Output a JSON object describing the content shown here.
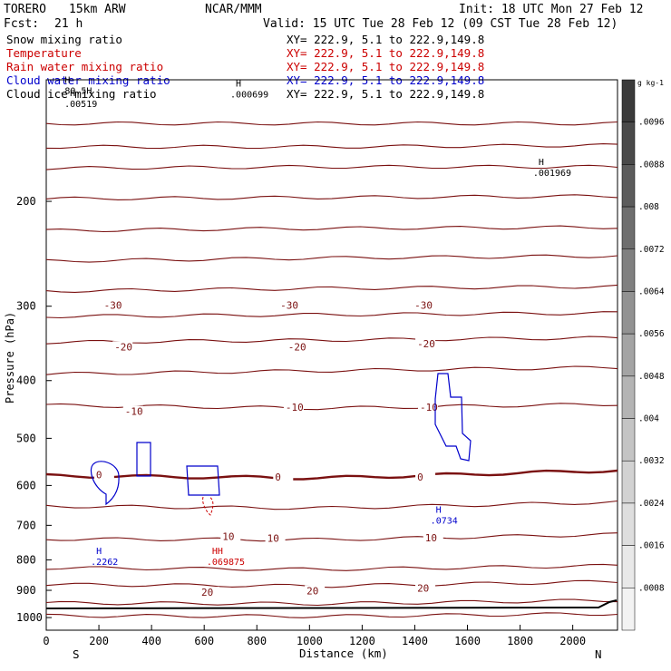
{
  "header": {
    "model": "TORERO",
    "resolution": "15km ARW",
    "org": "NCAR/MMM",
    "init": "Init: 18 UTC Mon 27 Feb 12",
    "fcst_label": "Fcst:",
    "fcst_value": "21 h",
    "valid": "Valid: 15 UTC Tue 28 Feb 12 (09 CST Tue 28 Feb 12)"
  },
  "fields": [
    {
      "name": "Snow mixing ratio",
      "xy": "XY= 222.9,  5.1 to 222.9,149.8",
      "color": "#000000"
    },
    {
      "name": "Temperature",
      "xy": "XY= 222.9,  5.1 to 222.9,149.8",
      "color": "#cc0000"
    },
    {
      "name": "Rain water mixing ratio",
      "xy": "XY= 222.9,  5.1 to 222.9,149.8",
      "color": "#cc0000"
    },
    {
      "name": "Cloud water mixing ratio",
      "xy": "XY= 222.9,  5.1 to 222.9,149.8",
      "color": "#0000cc"
    },
    {
      "name": "Cloud ice mixing ratio",
      "xy": "XY= 222.9,  5.1 to 222.9,149.8",
      "color": "#000000"
    }
  ],
  "chart_data": {
    "type": "cross-section contour",
    "xlabel": "Distance (km)",
    "ylabel": "Pressure (hPa)",
    "xlim": [
      0,
      2170
    ],
    "ylim": [
      1050,
      125
    ],
    "y_scale": "log",
    "x_ticks": [
      0,
      200,
      400,
      600,
      800,
      1000,
      1200,
      1400,
      1600,
      1800,
      2000
    ],
    "y_ticks": [
      200,
      300,
      400,
      500,
      600,
      700,
      800,
      900,
      1000
    ],
    "left_end_label": "S",
    "right_end_label": "N",
    "temperature_contours": {
      "interval_c": 5,
      "line_color": "#7a1010",
      "isotherms": [
        {
          "t": -55,
          "p": [
            148,
            148,
            148
          ]
        },
        {
          "t": -50,
          "p": [
            162,
            162,
            161
          ]
        },
        {
          "t": -45,
          "p": [
            176,
            175,
            175
          ]
        },
        {
          "t": -40,
          "p": [
            198,
            197,
            196
          ]
        },
        {
          "t": -35,
          "p": [
            224,
            222,
            221
          ]
        },
        {
          "t": -30,
          "p": [
            252,
            249,
            247
          ]
        },
        {
          "t": -25,
          "p": [
            283,
            280,
            278
          ]
        },
        {
          "t": -20,
          "p": [
            312,
            310,
            308
          ]
        },
        {
          "t": -15,
          "p": [
            345,
            342,
            339
          ]
        },
        {
          "t": -10,
          "p": [
            390,
            385,
            380
          ]
        },
        {
          "t": -5,
          "p": [
            440,
            445,
            438
          ]
        },
        {
          "t": 0,
          "p": [
            578,
            583,
            566
          ]
        },
        {
          "t": 5,
          "p": [
            650,
            655,
            640
          ]
        },
        {
          "t": 10,
          "p": [
            738,
            740,
            725
          ]
        },
        {
          "t": 15,
          "p": [
            825,
            830,
            818
          ]
        },
        {
          "t": 20,
          "p": [
            880,
            885,
            870
          ]
        },
        {
          "t": 25,
          "p": [
            945,
            948,
            935
          ]
        },
        {
          "t": 30,
          "p": [
            993,
            995,
            985
          ]
        }
      ],
      "label_positions": [
        {
          "text": "-30",
          "x": 250,
          "p": 300
        },
        {
          "text": "-30",
          "x": 920,
          "p": 300
        },
        {
          "text": "-30",
          "x": 1430,
          "p": 300
        },
        {
          "text": "-20",
          "x": 290,
          "p": 352
        },
        {
          "text": "-20",
          "x": 950,
          "p": 352
        },
        {
          "text": "-20",
          "x": 1440,
          "p": 348
        },
        {
          "text": "-10",
          "x": 330,
          "p": 452
        },
        {
          "text": "-10",
          "x": 940,
          "p": 445
        },
        {
          "text": "-10",
          "x": 1450,
          "p": 445
        },
        {
          "text": "0",
          "x": 220,
          "p": 578
        },
        {
          "text": "0",
          "x": 900,
          "p": 583
        },
        {
          "text": "0",
          "x": 1440,
          "p": 583
        },
        {
          "text": "10",
          "x": 700,
          "p": 733
        },
        {
          "text": "10",
          "x": 870,
          "p": 738
        },
        {
          "text": "10",
          "x": 1470,
          "p": 737
        },
        {
          "text": "20",
          "x": 620,
          "p": 910
        },
        {
          "text": "20",
          "x": 1020,
          "p": 905
        },
        {
          "text": "20",
          "x": 1440,
          "p": 895
        }
      ]
    },
    "maxima": [
      {
        "text": "H",
        "value": ".80.5H",
        "x": 70,
        "p": 131,
        "color": "#000000"
      },
      {
        "text": "H",
        "value": ".00519",
        "x": 90,
        "p": 138,
        "color": "#000000"
      },
      {
        "text": "H",
        "value": ".000699",
        "x": 720,
        "p": 133,
        "color": "#000000"
      },
      {
        "text": "H",
        "value": ".001969",
        "x": 1870,
        "p": 180,
        "color": "#000000"
      },
      {
        "text": "H",
        "value": ".2262",
        "x": 190,
        "p": 810,
        "color": "#0000cc"
      },
      {
        "text": "HH",
        "value": ".069875",
        "x": 630,
        "p": 810,
        "color": "#cc0000"
      },
      {
        "text": "H",
        "value": ".0734",
        "x": 1480,
        "p": 690,
        "color": "#0000cc"
      }
    ],
    "colorbar": {
      "unit": "g kg-1",
      "levels": [
        ".0096",
        ".0088",
        ".008",
        ".0072",
        ".0064",
        ".0056",
        ".0048",
        ".004",
        ".0032",
        ".0024",
        ".0016",
        ".0008"
      ],
      "colors": [
        "#3a3a3a",
        "#4a4a4a",
        "#5c5c5c",
        "#6e6e6e",
        "#808080",
        "#929292",
        "#a4a4a4",
        "#b4b4b4",
        "#c4c4c4",
        "#d2d2d2",
        "#dedede",
        "#e9e9e9",
        "#f3f3f3"
      ]
    }
  }
}
